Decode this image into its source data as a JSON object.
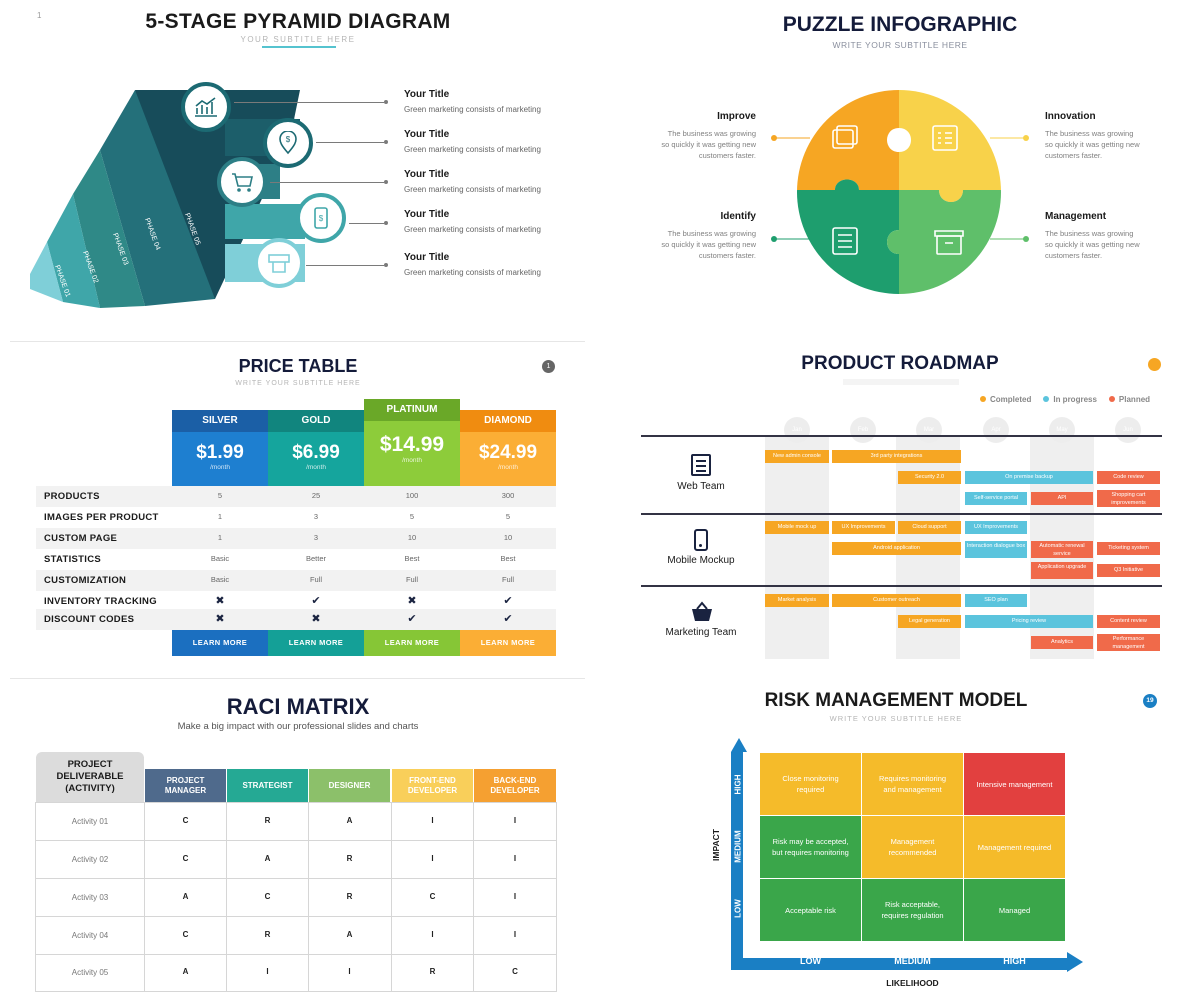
{
  "pyramid": {
    "page_number": "1",
    "title": "5-STAGE PYRAMID DIAGRAM",
    "subtitle": "YOUR SUBTITLE HERE",
    "items": [
      {
        "title": "Your Title",
        "desc": "Green marketing consists of marketing",
        "icon": "growth-chart-icon"
      },
      {
        "title": "Your Title",
        "desc": "Green marketing consists of marketing",
        "icon": "dollar-pin-icon"
      },
      {
        "title": "Your Title",
        "desc": "Green marketing consists of marketing",
        "icon": "cart-icon"
      },
      {
        "title": "Your Title",
        "desc": "Green marketing consists of marketing",
        "icon": "mobile-payment-icon"
      },
      {
        "title": "Your Title",
        "desc": "Green marketing consists of marketing",
        "icon": "atm-icon"
      }
    ],
    "phases": [
      "PHASE 01",
      "PHASE 02",
      "PHASE 03",
      "PHASE 04",
      "PHASE 05"
    ],
    "colors": [
      "#7fcfd8",
      "#3fa6a9",
      "#2f8987",
      "#24707a",
      "#174c5a"
    ]
  },
  "puzzle": {
    "title": "PUZZLE INFOGRAPHIC",
    "subtitle": "WRITE YOUR SUBTITLE HERE",
    "pieces": [
      {
        "title": "Improve",
        "desc": "The business was growing so quickly it was getting new customers faster.",
        "color": "#f6a623",
        "icon": "image-gallery-icon"
      },
      {
        "title": "Innovation",
        "desc": "The business was growing so quickly it was getting new customers faster.",
        "color": "#f8d24a",
        "icon": "checklist-icon"
      },
      {
        "title": "Identify",
        "desc": "The business was growing so quickly it was getting new customers faster.",
        "color": "#1e9e6e",
        "icon": "settings-sliders-icon"
      },
      {
        "title": "Management",
        "desc": "The business was growing so quickly it was getting new customers faster.",
        "color": "#5fbf6a",
        "icon": "archive-box-icon"
      }
    ]
  },
  "price_table": {
    "title": "PRICE TABLE",
    "subtitle": "WRITE YOUR SUBTITLE HERE",
    "badge": "1",
    "plans": [
      {
        "name": "SILVER",
        "price": "$1.99",
        "period": "/month",
        "button": "LEARN MORE",
        "dark": "#1b5fa6",
        "light": "#1e7fd0"
      },
      {
        "name": "GOLD",
        "price": "$6.99",
        "period": "/month",
        "button": "LEARN MORE",
        "dark": "#11857e",
        "light": "#15a59d"
      },
      {
        "name": "PLATINUM",
        "price": "$14.99",
        "period": "/month",
        "button": "LEARN MORE",
        "dark": "#6aa828",
        "light": "#8dcc3a"
      },
      {
        "name": "DIAMOND",
        "price": "$24.99",
        "period": "/month",
        "button": "LEARN MORE",
        "dark": "#f08c10",
        "light": "#fbae35"
      }
    ],
    "rows": [
      {
        "label": "PRODUCTS",
        "values": [
          "5",
          "25",
          "100",
          "300"
        ]
      },
      {
        "label": "IMAGES PER PRODUCT",
        "values": [
          "1",
          "3",
          "5",
          "5"
        ]
      },
      {
        "label": "CUSTOM PAGE",
        "values": [
          "1",
          "3",
          "10",
          "10"
        ]
      },
      {
        "label": "STATISTICS",
        "values": [
          "Basic",
          "Better",
          "Best",
          "Best"
        ]
      },
      {
        "label": "CUSTOMIZATION",
        "values": [
          "Basic",
          "Full",
          "Full",
          "Full"
        ]
      },
      {
        "label": "INVENTORY TRACKING",
        "values": [
          "✖",
          "✔",
          "✖",
          "✔"
        ]
      },
      {
        "label": "DISCOUNT CODES",
        "values": [
          "✖",
          "✖",
          "✔",
          "✔"
        ]
      }
    ]
  },
  "roadmap": {
    "title": "PRODUCT ROADMAP",
    "legend": [
      {
        "label": "Completed",
        "color": "#f6a623"
      },
      {
        "label": "In progress",
        "color": "#5bc4dd"
      },
      {
        "label": "Planned",
        "color": "#f06a4a"
      }
    ],
    "months": [
      "Jan",
      "Feb",
      "Mar",
      "Apr",
      "May",
      "Jun"
    ],
    "teams": [
      {
        "label": "Web Team",
        "icon": "document-icon"
      },
      {
        "label": "Mobile Mockup",
        "icon": "mobile-phone-icon"
      },
      {
        "label": "Marketing Team",
        "icon": "basket-icon"
      }
    ],
    "tasks": [
      {
        "label": "New admin console"
      },
      {
        "label": "3rd party integrations"
      },
      {
        "label": "Security 2.0"
      },
      {
        "label": "On premise backup"
      },
      {
        "label": "Code review"
      },
      {
        "label": "Self-service portal"
      },
      {
        "label": "API"
      },
      {
        "label": "Shopping cart improvements"
      },
      {
        "label": "Mobile mock up"
      },
      {
        "label": "UX Improvements"
      },
      {
        "label": "Cloud support"
      },
      {
        "label": "UX Improvements"
      },
      {
        "label": "Android application"
      },
      {
        "label": "Interaction dialogue box"
      },
      {
        "label": "Automatic renewal service"
      },
      {
        "label": "Ticketing system"
      },
      {
        "label": "Application upgrade"
      },
      {
        "label": "Q3 Initiative"
      },
      {
        "label": "Market analysis"
      },
      {
        "label": "Customer outreach"
      },
      {
        "label": "SEO plan"
      },
      {
        "label": "Legal generation"
      },
      {
        "label": "Pricing review"
      },
      {
        "label": "Content review"
      },
      {
        "label": "Analytics"
      },
      {
        "label": "Performance management"
      }
    ]
  },
  "raci": {
    "title": "RACI MATRIX",
    "subtitle": "Make a big impact with our professional slides and charts",
    "corner": "PROJECT DELIVERABLE (ACTIVITY)",
    "headers": [
      {
        "label": "PROJECT MANAGER",
        "color": "#4f6a8c"
      },
      {
        "label": "STRATEGIST",
        "color": "#25a994"
      },
      {
        "label": "DESIGNER",
        "color": "#8cc06a"
      },
      {
        "label": "FRONT-END DEVELOPER",
        "color": "#f9cf5a"
      },
      {
        "label": "BACK-END DEVELOPER",
        "color": "#f5a031"
      }
    ],
    "rows": [
      {
        "activity": "Activity 01",
        "values": [
          "C",
          "R",
          "A",
          "I",
          "I"
        ]
      },
      {
        "activity": "Activity 02",
        "values": [
          "C",
          "A",
          "R",
          "I",
          "I"
        ]
      },
      {
        "activity": "Activity 03",
        "values": [
          "A",
          "C",
          "R",
          "C",
          "I"
        ]
      },
      {
        "activity": "Activity 04",
        "values": [
          "C",
          "R",
          "A",
          "I",
          "I"
        ]
      },
      {
        "activity": "Activity 05",
        "values": [
          "A",
          "I",
          "I",
          "R",
          "C"
        ]
      }
    ]
  },
  "risk": {
    "title": "RISK MANAGEMENT MODEL",
    "subtitle": "WRITE YOUR SUBTITLE HERE",
    "badge": "19",
    "y_axis": "IMPACT",
    "x_axis": "LIKELIHOOD",
    "y_levels": [
      "HIGH",
      "MEDIUM",
      "LOW"
    ],
    "x_levels": [
      "LOW",
      "MEDIUM",
      "HIGH"
    ],
    "cells": [
      {
        "text": "Close monitoring required",
        "color": "#f5bb2a"
      },
      {
        "text": "Requires monitoring and management",
        "color": "#f5bb2a"
      },
      {
        "text": "Intensive management",
        "color": "#e2403f"
      },
      {
        "text": "Risk may be accepted, but requires monitoring",
        "color": "#3aa64a"
      },
      {
        "text": "Management recommended",
        "color": "#f5bb2a"
      },
      {
        "text": "Management required",
        "color": "#f5bb2a"
      },
      {
        "text": "Acceptable risk",
        "color": "#3aa64a"
      },
      {
        "text": "Risk acceptable, requires regulation",
        "color": "#3aa64a"
      },
      {
        "text": "Managed",
        "color": "#3aa64a"
      }
    ],
    "axis_color": "#1a7fc4"
  }
}
